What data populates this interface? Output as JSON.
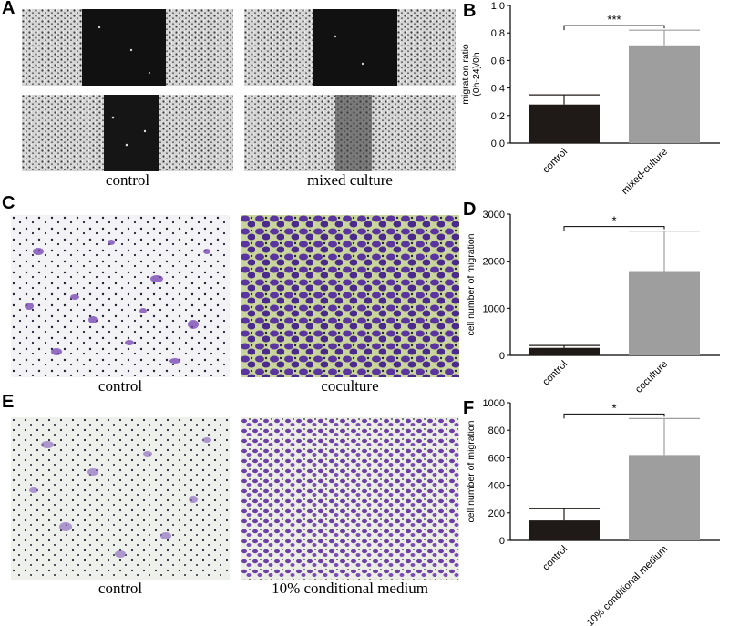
{
  "panels": {
    "a": {
      "letter": "A",
      "captions": [
        "control",
        "mixed culture"
      ]
    },
    "c": {
      "letter": "C",
      "captions": [
        "control",
        "coculture"
      ]
    },
    "e": {
      "letter": "E",
      "captions": [
        "control",
        "10% conditional medium"
      ]
    }
  },
  "colors": {
    "bar_dark": "#1f1a17",
    "bar_gray": "#9e9e9e",
    "stain_purple": "#6b3fa3",
    "nuclei": "#222233"
  },
  "chart_data": [
    {
      "panel": "B",
      "type": "bar",
      "categories": [
        "control",
        "mixed-culture"
      ],
      "values": [
        0.28,
        0.71
      ],
      "errors": [
        0.07,
        0.11
      ],
      "ylabel_lines": [
        "migration ratio",
        "(0h-24)/0h"
      ],
      "ylim": [
        0,
        1.0
      ],
      "yticks": [
        "0.0",
        "0.2",
        "0.4",
        "0.6",
        "0.8",
        "1.0"
      ],
      "significance": "***"
    },
    {
      "panel": "D",
      "type": "bar",
      "categories": [
        "control",
        "coculture"
      ],
      "values": [
        160,
        1790
      ],
      "errors": [
        50,
        850
      ],
      "ylabel_lines": [
        "cell number of migration"
      ],
      "ylim": [
        0,
        3000
      ],
      "yticks": [
        "0",
        "1000",
        "2000",
        "3000"
      ],
      "significance": "*"
    },
    {
      "panel": "F",
      "type": "bar",
      "categories": [
        "control",
        "10% conditional medium"
      ],
      "values": [
        145,
        620
      ],
      "errors": [
        85,
        265
      ],
      "ylabel_lines": [
        "cell number of migration"
      ],
      "ylim": [
        0,
        1000
      ],
      "yticks": [
        "0",
        "200",
        "400",
        "600",
        "800",
        "1000"
      ],
      "significance": "*"
    }
  ]
}
